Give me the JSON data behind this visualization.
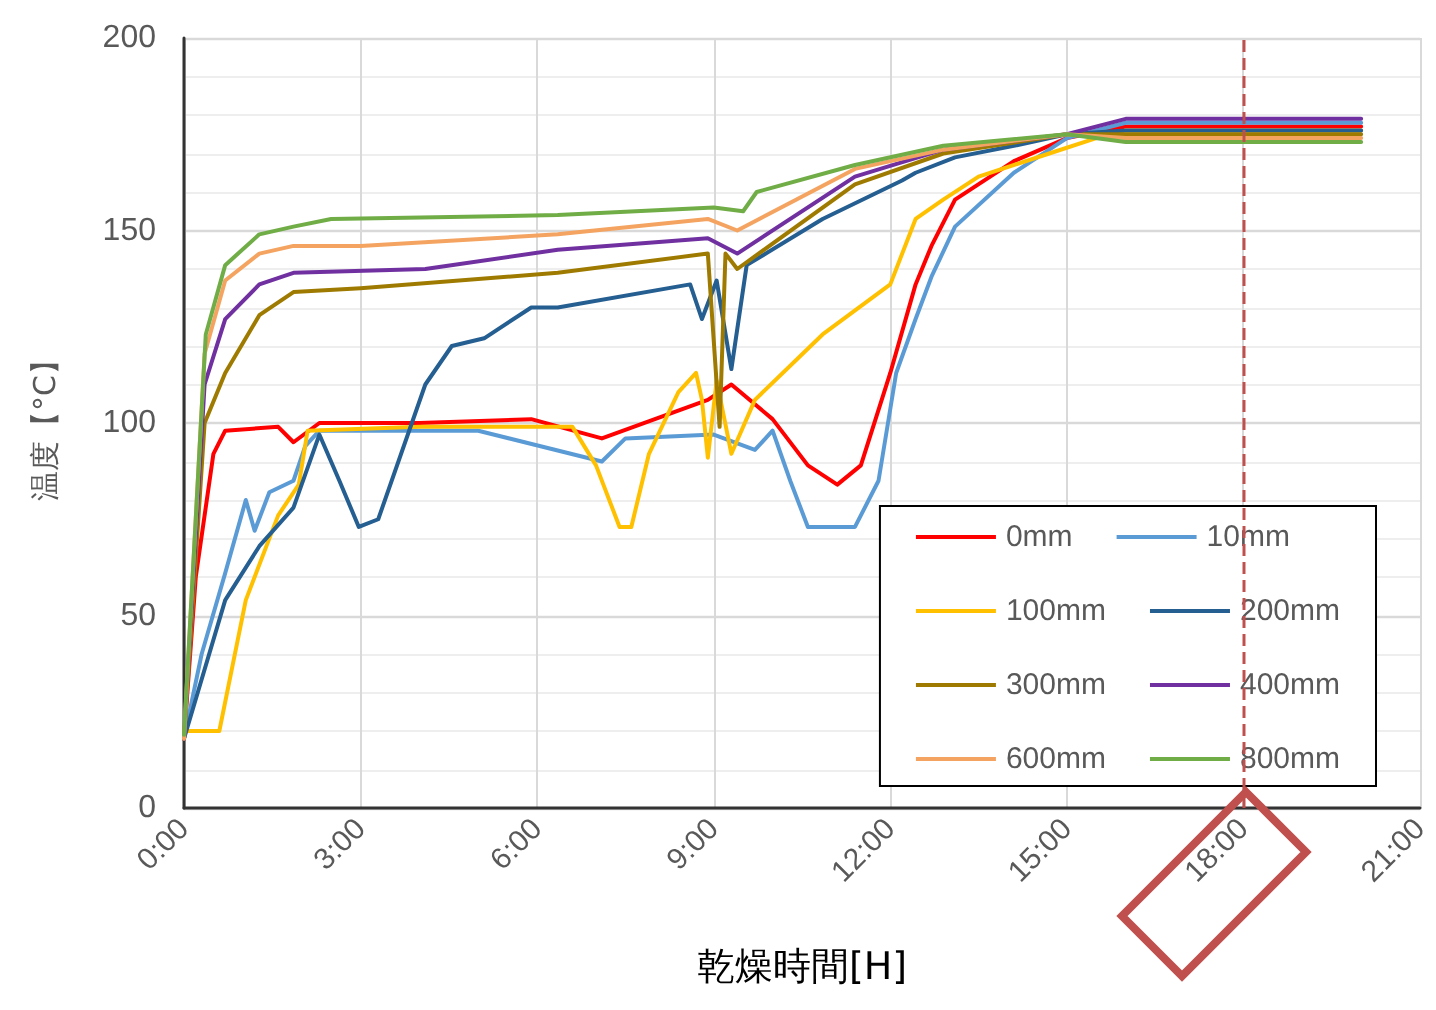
{
  "chart_data": {
    "type": "line",
    "xlabel": "乾燥時間[H]",
    "ylabel": "温度【°C】",
    "xlim": [
      0,
      21
    ],
    "xticks": [
      {
        "value": 0,
        "label": "0:00"
      },
      {
        "value": 3,
        "label": "3:00"
      },
      {
        "value": 6,
        "label": "6:00"
      },
      {
        "value": 9,
        "label": "9:00"
      },
      {
        "value": 12,
        "label": "12:00"
      },
      {
        "value": 15,
        "label": "15:00"
      },
      {
        "value": 18,
        "label": "18:00"
      },
      {
        "value": 21,
        "label": "21:00"
      }
    ],
    "ylim": [
      0,
      200
    ],
    "yticks": [
      0,
      50,
      100,
      150,
      200
    ],
    "grid": true,
    "legend": "bottom right",
    "marker": "none",
    "line_style": "solid",
    "ref_lines": [
      {
        "axis": "x",
        "value": 18,
        "label": null,
        "color": "#c0504d",
        "line_style": "dashed"
      }
    ],
    "series": [
      {
        "name": "0mm",
        "color": "#ff0000",
        "x": [
          0,
          0.2,
          0.5,
          0.7,
          1.6,
          1.86,
          2.3,
          4,
          5.9,
          7.1,
          8,
          8.9,
          9.3,
          10,
          10.6,
          11.1,
          11.5,
          12,
          12.43,
          12.7,
          13.1,
          14.1,
          15,
          16,
          20
        ],
        "values": [
          18,
          60,
          92,
          98,
          99,
          95,
          100,
          100,
          101,
          96,
          101,
          106,
          110,
          101,
          89,
          84,
          89,
          113,
          136,
          146,
          158,
          168,
          174,
          177,
          177
        ]
      },
      {
        "name": "10mm",
        "color": "#5b9bd5",
        "x": [
          0,
          0.3,
          0.7,
          1.05,
          1.2,
          1.45,
          1.86,
          2.06,
          2.3,
          5,
          7.1,
          7.5,
          9,
          9.7,
          10,
          10.3,
          10.6,
          11.4,
          11.8,
          12.1,
          12.43,
          12.7,
          13.1,
          14.1,
          15,
          16,
          20
        ],
        "values": [
          18,
          40,
          61,
          80,
          72,
          82,
          85,
          94,
          98,
          98,
          90,
          96,
          97,
          93,
          98,
          85,
          73,
          73,
          85,
          113,
          127,
          138,
          151,
          165,
          174,
          178,
          178
        ]
      },
      {
        "name": "100mm",
        "color": "#ffc000",
        "x": [
          0,
          0.6,
          1.05,
          1.6,
          1.95,
          2.1,
          4,
          6.6,
          7,
          7.4,
          7.6,
          7.9,
          8.4,
          8.7,
          8.8,
          8.9,
          9.05,
          9.3,
          9.7,
          10.85,
          12,
          12.43,
          12.9,
          13.5,
          14.7,
          15.5,
          16,
          20
        ],
        "values": [
          20,
          20,
          54,
          76,
          84,
          98,
          99,
          99,
          89,
          73,
          73,
          92,
          108,
          113,
          106,
          91,
          111,
          92,
          106,
          123,
          136,
          153,
          158,
          164,
          170,
          174,
          176,
          176
        ]
      },
      {
        "name": "200mm",
        "color": "#255e91",
        "x": [
          0,
          0.7,
          1.28,
          1.86,
          2.3,
          2.64,
          2.97,
          3.3,
          4.1,
          4.55,
          5.1,
          5.9,
          6.35,
          8.6,
          8.8,
          9.05,
          9.3,
          9.56,
          10.85,
          12.2,
          12.43,
          13.1,
          14.1,
          15,
          16,
          20
        ],
        "values": [
          18,
          54,
          68,
          78,
          97,
          85,
          73,
          75,
          110,
          120,
          122,
          130,
          130,
          136,
          127,
          137,
          114,
          141,
          153,
          163,
          165,
          169,
          172,
          175,
          176,
          176
        ]
      },
      {
        "name": "300mm",
        "color": "#9e7b00",
        "x": [
          0,
          0.35,
          0.7,
          1.28,
          1.86,
          3,
          6.35,
          8.9,
          9.1,
          9.2,
          9.4,
          11.4,
          12.9,
          15,
          16,
          20
        ],
        "values": [
          18,
          100,
          113,
          128,
          134,
          135,
          139,
          144,
          99,
          144,
          140,
          162,
          170,
          175,
          175,
          175
        ]
      },
      {
        "name": "400mm",
        "color": "#7030a0",
        "x": [
          0,
          0.35,
          0.7,
          1.28,
          1.86,
          4.1,
          6.35,
          8.9,
          9.4,
          11.4,
          12.9,
          15,
          16,
          20
        ],
        "values": [
          18,
          110,
          127,
          136,
          139,
          140,
          145,
          148,
          144,
          164,
          171,
          175,
          179,
          179
        ]
      },
      {
        "name": "600mm",
        "color": "#f4a460",
        "x": [
          0,
          0.35,
          0.7,
          1.28,
          1.86,
          3,
          6.35,
          8.9,
          9.4,
          11.4,
          12.9,
          15,
          16,
          20
        ],
        "values": [
          18,
          118,
          137,
          144,
          146,
          146,
          149,
          153,
          150,
          166,
          171,
          175,
          174,
          174
        ]
      },
      {
        "name": "800mm",
        "color": "#70ad47",
        "x": [
          0,
          0.37,
          0.7,
          1.28,
          1.86,
          2.5,
          6.35,
          9,
          9.5,
          9.73,
          11.4,
          12.9,
          15,
          16,
          20
        ],
        "values": [
          19,
          123,
          141,
          149,
          151,
          153,
          154,
          156,
          155,
          160,
          167,
          172,
          175,
          173,
          173
        ]
      }
    ]
  }
}
